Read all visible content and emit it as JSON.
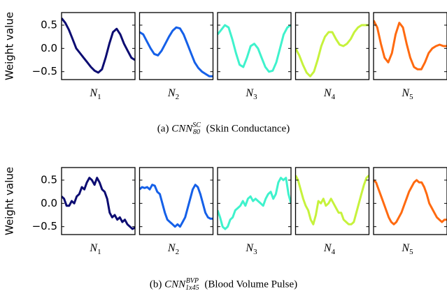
{
  "chart_data": [
    {
      "type": "line",
      "ylabel": "Weight value",
      "xlabel": "N",
      "xlabel_sub": "1",
      "color": "#0c0c72",
      "ylim": [
        -0.67,
        0.77
      ],
      "yticks": [
        {
          "value": -0.5,
          "label": "−0.5"
        },
        {
          "value": 0,
          "label": "0.0"
        },
        0.5
      ],
      "values": [
        0.65,
        0.55,
        0.4,
        0.2,
        0.0,
        -0.1,
        -0.2,
        -0.3,
        -0.4,
        -0.48,
        -0.52,
        -0.45,
        -0.2,
        0.1,
        0.35,
        0.42,
        0.3,
        0.1,
        -0.05,
        -0.2,
        -0.25
      ]
    },
    {
      "type": "line",
      "xlabel": "N",
      "xlabel_sub": "2",
      "color": "#1560e8",
      "ylim": [
        -0.67,
        0.77
      ],
      "yticks": [
        -0.5,
        0,
        0.5
      ],
      "values": [
        0.35,
        0.3,
        0.15,
        0.0,
        -0.12,
        -0.15,
        -0.05,
        0.1,
        0.25,
        0.38,
        0.45,
        0.43,
        0.3,
        0.1,
        -0.1,
        -0.3,
        -0.42,
        -0.5,
        -0.55,
        -0.6,
        -0.6
      ]
    },
    {
      "type": "line",
      "xlabel": "N",
      "xlabel_sub": "3",
      "color": "#3ff2cc",
      "ylim": [
        -0.67,
        0.77
      ],
      "yticks": [
        -0.5,
        0,
        0.5
      ],
      "values": [
        0.3,
        0.4,
        0.5,
        0.45,
        0.2,
        -0.1,
        -0.35,
        -0.4,
        -0.2,
        0.05,
        0.1,
        0.0,
        -0.2,
        -0.4,
        -0.5,
        -0.48,
        -0.3,
        0.0,
        0.3,
        0.45,
        0.5
      ]
    },
    {
      "type": "line",
      "xlabel": "N",
      "xlabel_sub": "4",
      "color": "#c6f23c",
      "ylim": [
        -0.67,
        0.77
      ],
      "yticks": [
        -0.5,
        0,
        0.5
      ],
      "values": [
        0.0,
        -0.15,
        -0.35,
        -0.52,
        -0.6,
        -0.5,
        -0.25,
        0.05,
        0.25,
        0.35,
        0.35,
        0.2,
        0.08,
        0.05,
        0.1,
        0.2,
        0.35,
        0.45,
        0.5,
        0.5,
        0.5
      ]
    },
    {
      "type": "line",
      "xlabel": "N",
      "xlabel_sub": "5",
      "color": "#ff6a10",
      "ylim": [
        -0.67,
        0.77
      ],
      "yticks": [
        -0.5,
        0,
        0.5
      ],
      "values": [
        0.6,
        0.45,
        0.1,
        -0.2,
        -0.3,
        -0.1,
        0.3,
        0.55,
        0.45,
        0.1,
        -0.2,
        -0.4,
        -0.45,
        -0.45,
        -0.3,
        -0.1,
        0.0,
        0.05,
        0.08,
        0.05,
        0.05
      ]
    },
    {
      "type": "line",
      "ylabel": "Weight value",
      "xlabel": "N",
      "xlabel_sub": "1",
      "color": "#0c0c72",
      "ylim": [
        -0.67,
        0.77
      ],
      "yticks": [
        {
          "value": -0.5,
          "label": "−0.5"
        },
        {
          "value": 0,
          "label": "0.0"
        },
        0.5
      ],
      "values": [
        0.15,
        0.1,
        -0.05,
        -0.05,
        0.05,
        0.0,
        0.15,
        0.2,
        0.35,
        0.3,
        0.45,
        0.55,
        0.5,
        0.4,
        0.55,
        0.45,
        0.3,
        0.25,
        0.1,
        -0.2,
        -0.3,
        -0.25,
        -0.35,
        -0.3,
        -0.4,
        -0.35,
        -0.45,
        -0.5,
        -0.55,
        -0.52
      ]
    },
    {
      "type": "line",
      "xlabel": "N",
      "xlabel_sub": "2",
      "color": "#1560e8",
      "ylim": [
        -0.67,
        0.77
      ],
      "yticks": [
        -0.5,
        0,
        0.5
      ],
      "values": [
        0.3,
        0.35,
        0.33,
        0.35,
        0.3,
        0.4,
        0.38,
        0.25,
        0.2,
        0.0,
        -0.2,
        -0.35,
        -0.4,
        -0.45,
        -0.5,
        -0.45,
        -0.5,
        -0.4,
        -0.3,
        -0.1,
        0.1,
        0.3,
        0.4,
        0.35,
        0.2,
        0.0,
        -0.2,
        -0.3,
        -0.33,
        -0.33
      ]
    },
    {
      "type": "line",
      "xlabel": "N",
      "xlabel_sub": "3",
      "color": "#3ff2cc",
      "ylim": [
        -0.67,
        0.77
      ],
      "yticks": [
        -0.5,
        0,
        0.5
      ],
      "values": [
        -0.15,
        -0.3,
        -0.5,
        -0.55,
        -0.5,
        -0.35,
        -0.3,
        -0.15,
        -0.1,
        -0.05,
        0.05,
        -0.05,
        0.1,
        0.15,
        0.05,
        0.1,
        0.05,
        0.0,
        -0.05,
        0.1,
        0.2,
        0.25,
        0.1,
        0.2,
        0.45,
        0.55,
        0.5,
        0.55,
        0.2,
        0.0
      ]
    },
    {
      "type": "line",
      "xlabel": "N",
      "xlabel_sub": "4",
      "color": "#c6f23c",
      "ylim": [
        -0.67,
        0.77
      ],
      "yticks": [
        -0.5,
        0,
        0.5
      ],
      "values": [
        0.6,
        0.5,
        0.3,
        0.1,
        -0.05,
        -0.15,
        -0.35,
        -0.45,
        -0.25,
        0.05,
        0.0,
        0.1,
        -0.05,
        0.0,
        0.1,
        0.0,
        -0.1,
        -0.2,
        -0.2,
        -0.35,
        -0.4,
        -0.45,
        -0.45,
        -0.4,
        -0.2,
        0.0,
        0.2,
        0.4,
        0.55,
        0.6
      ]
    },
    {
      "type": "line",
      "xlabel": "N",
      "xlabel_sub": "5",
      "color": "#ff6a10",
      "ylim": [
        -0.67,
        0.77
      ],
      "yticks": [
        -0.5,
        0,
        0.5
      ],
      "values": [
        0.5,
        0.45,
        0.3,
        0.15,
        0.0,
        -0.15,
        -0.3,
        -0.4,
        -0.45,
        -0.4,
        -0.3,
        -0.2,
        -0.05,
        0.1,
        0.25,
        0.35,
        0.45,
        0.5,
        0.45,
        0.45,
        0.35,
        0.2,
        0.0,
        -0.1,
        -0.2,
        -0.3,
        -0.35,
        -0.4,
        -0.35,
        -0.35
      ]
    }
  ],
  "captions": [
    {
      "label": "(a)",
      "base": "CNN",
      "sup": "SC",
      "sub": "80",
      "rest": "(Skin Conductance)"
    },
    {
      "label": "(b)",
      "base": "CNN",
      "sup": "BVP",
      "sub": "1x45",
      "rest": "(Blood Volume Pulse)"
    }
  ]
}
